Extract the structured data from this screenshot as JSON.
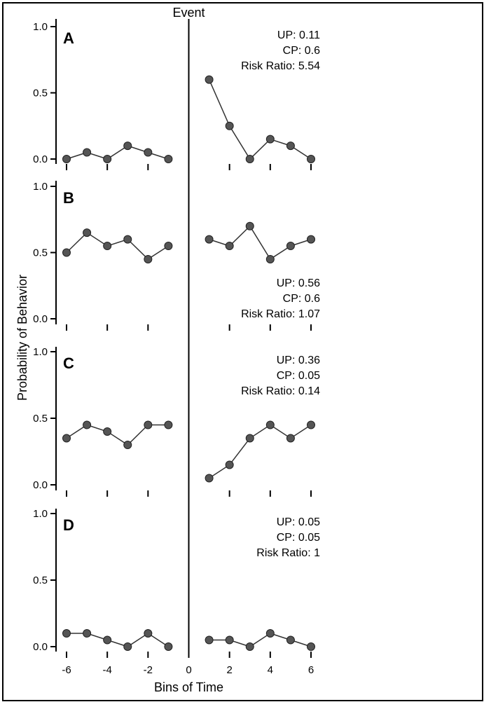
{
  "chart_data": {
    "type": "line",
    "event_label": "Event",
    "xlabel": "Bins of Time",
    "ylabel": "Probability of Behavior",
    "x_ticks": [
      "-6",
      "-4",
      "-2",
      "0",
      "2",
      "4",
      "6"
    ],
    "x_tick_values": [
      -6,
      -4,
      -2,
      0,
      2,
      4,
      6
    ],
    "xlim": [
      -6,
      6
    ],
    "ylim": [
      0,
      1
    ],
    "y_ticks": [
      "0.0",
      "0.5",
      "1.0"
    ],
    "y_tick_values": [
      0,
      0.5,
      1
    ],
    "panels": [
      {
        "label": "A",
        "stats": {
          "up": "UP: 0.11",
          "cp": "CP: 0.6",
          "rr": "Risk Ratio: 5.54"
        },
        "stats_position": "top-right",
        "pre": {
          "x": [
            -6,
            -5,
            -4,
            -3,
            -2,
            -1
          ],
          "y": [
            0,
            0.05,
            0,
            0.1,
            0.05,
            0
          ]
        },
        "post": {
          "x": [
            1,
            2,
            3,
            4,
            5,
            6
          ],
          "y": [
            0.6,
            0.25,
            0,
            0.15,
            0.1,
            0
          ]
        }
      },
      {
        "label": "B",
        "stats": {
          "up": "UP: 0.56",
          "cp": "CP: 0.6",
          "rr": "Risk Ratio: 1.07"
        },
        "stats_position": "bottom-right",
        "pre": {
          "x": [
            -6,
            -5,
            -4,
            -3,
            -2,
            -1
          ],
          "y": [
            0.5,
            0.65,
            0.55,
            0.6,
            0.45,
            0.55
          ]
        },
        "post": {
          "x": [
            1,
            2,
            3,
            4,
            5,
            6
          ],
          "y": [
            0.6,
            0.55,
            0.7,
            0.45,
            0.55,
            0.6
          ]
        }
      },
      {
        "label": "C",
        "stats": {
          "up": "UP: 0.36",
          "cp": "CP: 0.05",
          "rr": "Risk Ratio: 0.14"
        },
        "stats_position": "top-right",
        "pre": {
          "x": [
            -6,
            -5,
            -4,
            -3,
            -2,
            -1
          ],
          "y": [
            0.35,
            0.45,
            0.4,
            0.3,
            0.45,
            0.45
          ]
        },
        "post": {
          "x": [
            1,
            2,
            3,
            4,
            5,
            6
          ],
          "y": [
            0.05,
            0.15,
            0.35,
            0.45,
            0.35,
            0.45
          ]
        }
      },
      {
        "label": "D",
        "stats": {
          "up": "UP: 0.05",
          "cp": "CP: 0.05",
          "rr": "Risk Ratio: 1"
        },
        "stats_position": "top-right",
        "pre": {
          "x": [
            -6,
            -5,
            -4,
            -3,
            -2,
            -1
          ],
          "y": [
            0.1,
            0.1,
            0.05,
            0,
            0.1,
            0
          ]
        },
        "post": {
          "x": [
            1,
            2,
            3,
            4,
            5,
            6
          ],
          "y": [
            0.05,
            0.05,
            0,
            0.1,
            0.05,
            0
          ]
        }
      }
    ],
    "colors": {
      "marker": "#555555",
      "line": "#333333",
      "axis": "#000000"
    }
  }
}
